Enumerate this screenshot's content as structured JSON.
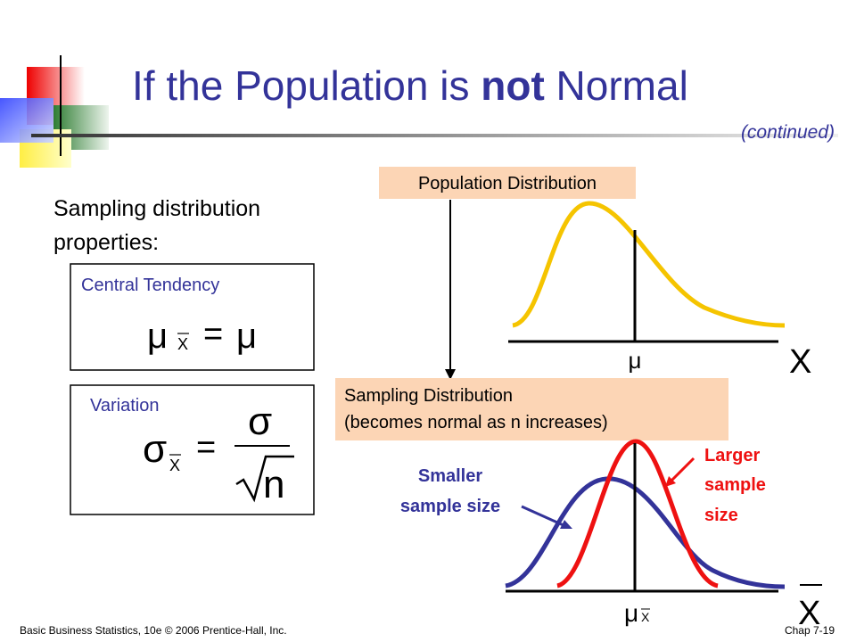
{
  "header": {
    "title_parts": [
      "If the Population is ",
      "not",
      " Normal"
    ],
    "continued": "(continued)"
  },
  "left": {
    "heading_lines": [
      "Sampling distribution",
      "properties:"
    ],
    "central": {
      "label": "Central Tendency",
      "formula": {
        "lhs": "μ",
        "sub": "X",
        "eq": "=",
        "rhs": "μ"
      }
    },
    "variation": {
      "label": "Variation",
      "formula": {
        "lhs": "σ",
        "sub": "X",
        "eq": "=",
        "num": "σ",
        "den": "n"
      }
    }
  },
  "diagram": {
    "population_label": "Population Distribution",
    "population_mu": "μ",
    "population_axis": "X",
    "sampling_label_lines": [
      "Sampling Distribution",
      "(becomes normal as n increases)"
    ],
    "smaller_lines": [
      "Smaller",
      "sample size"
    ],
    "larger_lines": [
      "Larger",
      "sample",
      "size"
    ],
    "sampling_mu": "μ",
    "sampling_mu_sub": "X",
    "sampling_axis": "X"
  },
  "footer": {
    "left": "Basic Business Statistics, 10e © 2006 Prentice-Hall, Inc.",
    "right": "Chap 7-19"
  }
}
